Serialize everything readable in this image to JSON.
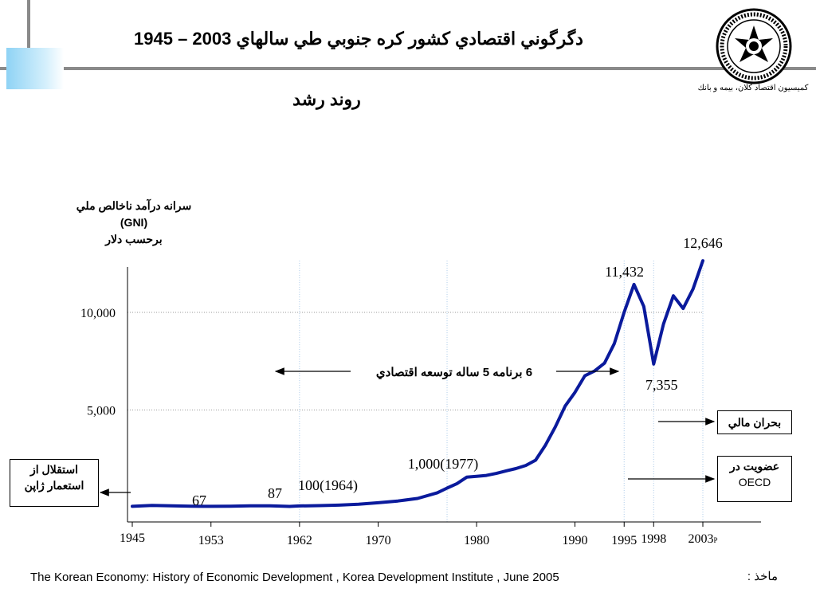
{
  "header": {
    "title": "دگرگوني اقتصادي كشور كره جنوبي طي سالهاي 2003 – 1945",
    "subtitle": "روند رشد"
  },
  "logo": {
    "caption": "كميسيون اقتصاد كلان، بيمه و بانك"
  },
  "chart_data": {
    "type": "line",
    "title": "",
    "ylabel": [
      "سرانه درآمد ناخالص ملي",
      "(GNI)",
      "برحسب دلار"
    ],
    "xlim": [
      1945,
      2003
    ],
    "ylim": [
      0,
      12600
    ],
    "x_ticks": [
      {
        "value": 1945,
        "label": "1945"
      },
      {
        "value": 1953,
        "label": "1953"
      },
      {
        "value": 1962,
        "label": "1962"
      },
      {
        "value": 1970,
        "label": "1970"
      },
      {
        "value": 1980,
        "label": "1980"
      },
      {
        "value": 1990,
        "label": "1990"
      },
      {
        "value": 1995,
        "label": "1995"
      },
      {
        "value": 1998,
        "label": "1998"
      },
      {
        "value": 2003,
        "label": "2003"
      }
    ],
    "x_tick_suffix_last": "P",
    "y_ticks": [
      {
        "value": 5000,
        "label": "5,000"
      },
      {
        "value": 10000,
        "label": "10,000"
      }
    ],
    "grid": "horizontal dotted at y ticks; vertical dotted at 1962, 1977, 1995, 1998, 2003",
    "series": [
      {
        "color": "#0a1a9c",
        "points": [
          [
            1945,
            67
          ],
          [
            1947,
            110
          ],
          [
            1949,
            95
          ],
          [
            1951,
            75
          ],
          [
            1953,
            67
          ],
          [
            1955,
            75
          ],
          [
            1957,
            95
          ],
          [
            1959,
            95
          ],
          [
            1961,
            60
          ],
          [
            1962,
            87
          ],
          [
            1964,
            100
          ],
          [
            1966,
            125
          ],
          [
            1968,
            170
          ],
          [
            1970,
            250
          ],
          [
            1972,
            340
          ],
          [
            1974,
            470
          ],
          [
            1976,
            760
          ],
          [
            1977,
            1000
          ],
          [
            1978,
            1230
          ],
          [
            1979,
            1560
          ],
          [
            1980,
            1600
          ],
          [
            1981,
            1650
          ],
          [
            1982,
            1750
          ],
          [
            1983,
            1880
          ],
          [
            1984,
            2000
          ],
          [
            1985,
            2160
          ],
          [
            1986,
            2430
          ],
          [
            1987,
            3200
          ],
          [
            1988,
            4130
          ],
          [
            1989,
            5200
          ],
          [
            1990,
            5900
          ],
          [
            1991,
            6750
          ],
          [
            1992,
            7000
          ],
          [
            1993,
            7400
          ],
          [
            1994,
            8400
          ],
          [
            1995,
            10000
          ],
          [
            1996,
            11432
          ],
          [
            1997,
            10300
          ],
          [
            1998,
            7355
          ],
          [
            1999,
            9400
          ],
          [
            2000,
            10850
          ],
          [
            2001,
            10200
          ],
          [
            2002,
            11200
          ],
          [
            2003,
            12646
          ]
        ]
      }
    ],
    "data_labels": [
      {
        "x": 1953,
        "y": 67,
        "label": "67"
      },
      {
        "x": 1962,
        "y": 87,
        "label": "87"
      },
      {
        "x": 1964,
        "y": 100,
        "label": "100(1964)"
      },
      {
        "x": 1977,
        "y": 1000,
        "label": "1,000(1977)"
      },
      {
        "x": 1996,
        "y": 11432,
        "label": "11,432"
      },
      {
        "x": 1998,
        "y": 7355,
        "label": "7,355"
      },
      {
        "x": 2003,
        "y": 12646,
        "label": "12,646"
      }
    ],
    "annotations": {
      "plan": "6 برنامه 5 ساله توسعه اقتصادي",
      "independence": [
        "استقلال از",
        "استعمار ژاپن"
      ],
      "crisis": "بحران مالي",
      "oecd": [
        "عضويت در",
        "OECD"
      ]
    }
  },
  "footer": {
    "source_label": "ماخذ :",
    "source_text": "The Korean Economy: History of Economic Development , Korea Development Institute , June 2005"
  }
}
